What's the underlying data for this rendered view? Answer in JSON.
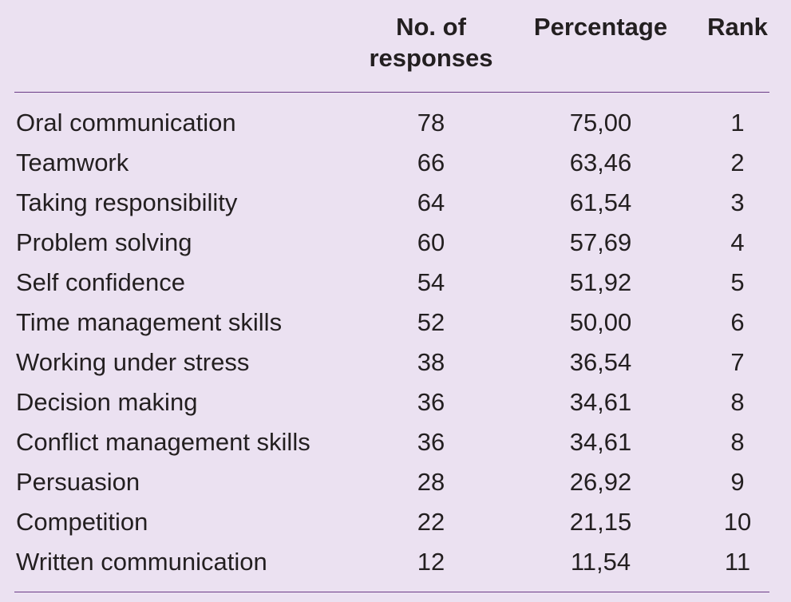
{
  "table": {
    "headers": {
      "skill": "",
      "count": "No. of\nresponses",
      "percentage": "Percentage",
      "rank": "Rank"
    },
    "rows": [
      {
        "skill": "Oral communication",
        "count": "78",
        "percentage": "75,00",
        "rank": "1"
      },
      {
        "skill": "Teamwork",
        "count": "66",
        "percentage": "63,46",
        "rank": "2"
      },
      {
        "skill": "Taking responsibility",
        "count": "64",
        "percentage": "61,54",
        "rank": "3"
      },
      {
        "skill": "Problem solving",
        "count": "60",
        "percentage": "57,69",
        "rank": "4"
      },
      {
        "skill": "Self confidence",
        "count": "54",
        "percentage": "51,92",
        "rank": "5"
      },
      {
        "skill": "Time management skills",
        "count": "52",
        "percentage": "50,00",
        "rank": "6"
      },
      {
        "skill": "Working under stress",
        "count": "38",
        "percentage": "36,54",
        "rank": "7"
      },
      {
        "skill": "Decision making",
        "count": "36",
        "percentage": "34,61",
        "rank": "8"
      },
      {
        "skill": "Conflict management skills",
        "count": "36",
        "percentage": "34,61",
        "rank": "8"
      },
      {
        "skill": "Persuasion",
        "count": "28",
        "percentage": "26,92",
        "rank": "9"
      },
      {
        "skill": "Competition",
        "count": "22",
        "percentage": "21,15",
        "rank": "10"
      },
      {
        "skill": "Written communication",
        "count": "12",
        "percentage": "11,54",
        "rank": "11"
      }
    ]
  },
  "colors": {
    "background": "#ebe1f1",
    "rule": "#6b3a86",
    "text": "#231f20"
  }
}
